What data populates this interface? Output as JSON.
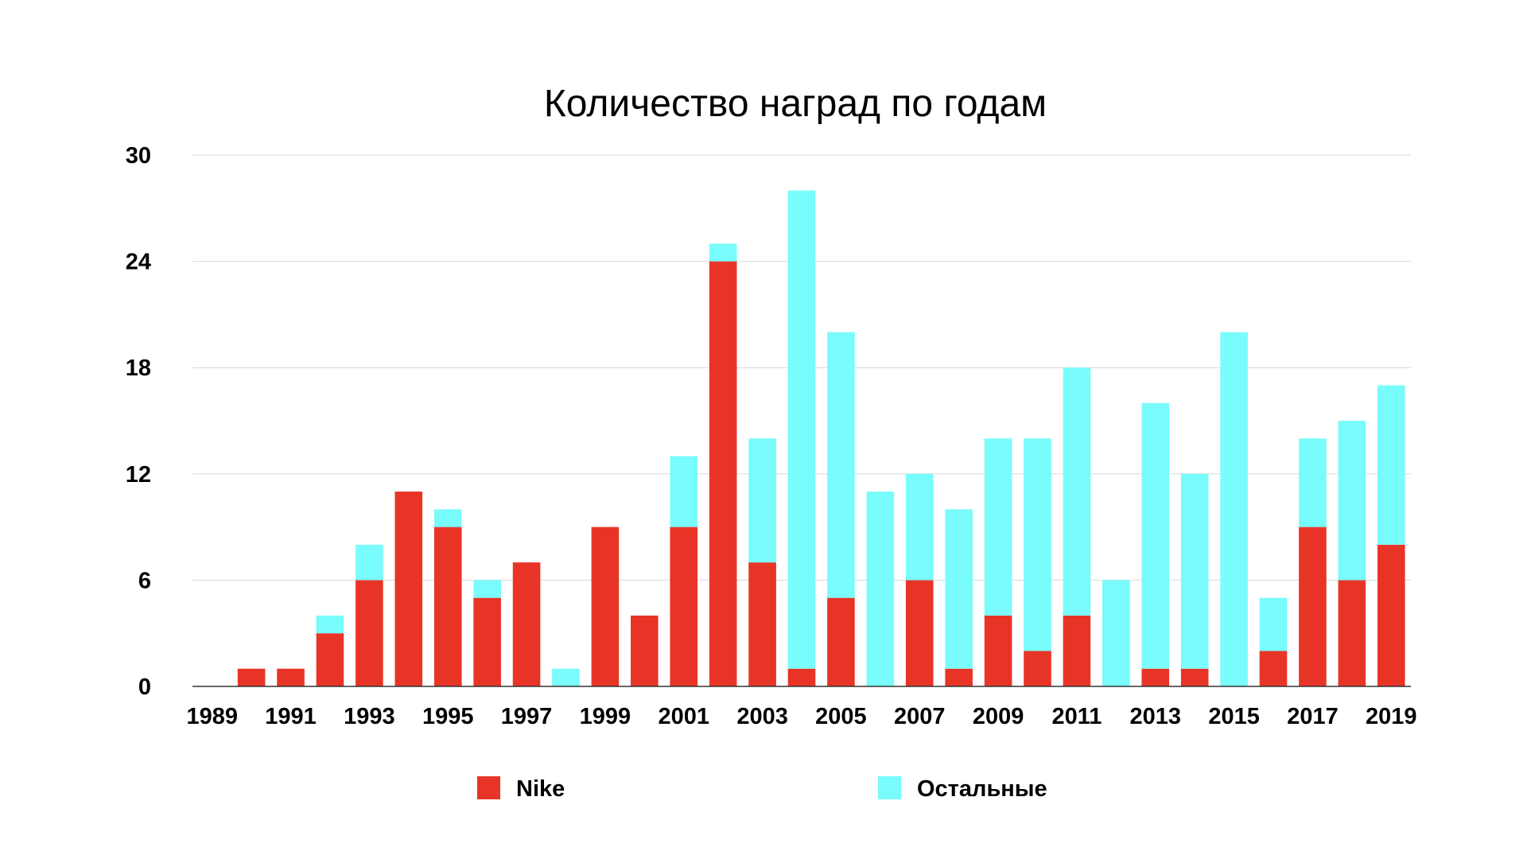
{
  "chart_data": {
    "type": "bar",
    "stacked": true,
    "title": "Количество наград по годам",
    "xlabel": "",
    "ylabel": "",
    "ylim": [
      0,
      30
    ],
    "yticks": [
      0,
      6,
      12,
      18,
      24,
      30
    ],
    "grid": true,
    "legend_position": "bottom",
    "categories": [
      "1989",
      "1990",
      "1991",
      "1992",
      "1993",
      "1994",
      "1995",
      "1996",
      "1997",
      "1998",
      "1999",
      "2000",
      "2001",
      "2002",
      "2003",
      "2004",
      "2005",
      "2006",
      "2007",
      "2008",
      "2009",
      "2010",
      "2011",
      "2012",
      "2013",
      "2014",
      "2015",
      "2016",
      "2017",
      "2018",
      "2019"
    ],
    "xtick_labels": [
      "1989",
      "1991",
      "1993",
      "1995",
      "1997",
      "1999",
      "2001",
      "2003",
      "2005",
      "2007",
      "2009",
      "2011",
      "2013",
      "2015",
      "2017",
      "2019"
    ],
    "series": [
      {
        "name": "Nike",
        "color": "#e83426",
        "values": [
          0,
          1,
          1,
          3,
          6,
          11,
          9,
          5,
          7,
          0,
          9,
          4,
          9,
          24,
          7,
          1,
          5,
          0,
          6,
          1,
          4,
          2,
          4,
          0,
          1,
          1,
          0,
          2,
          9,
          6,
          8
        ]
      },
      {
        "name": "Остальные",
        "color": "#78fcfc",
        "values": [
          0,
          0,
          0,
          1,
          2,
          0,
          1,
          1,
          0,
          1,
          0,
          0,
          4,
          1,
          7,
          27,
          15,
          11,
          6,
          9,
          10,
          12,
          14,
          6,
          15,
          11,
          20,
          3,
          5,
          9,
          9
        ]
      }
    ]
  }
}
